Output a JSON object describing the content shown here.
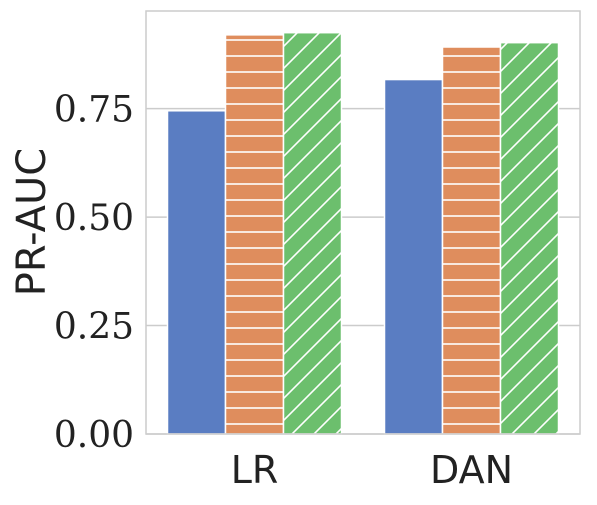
{
  "chart_data": {
    "type": "bar",
    "title": "",
    "xlabel": "",
    "ylabel": "PR-AUC",
    "categories": [
      "LR",
      "DAN"
    ],
    "series": [
      {
        "values": [
          0.745,
          0.817
        ],
        "color": "#5a7dc2",
        "hatch": "none"
      },
      {
        "values": [
          0.92,
          0.892
        ],
        "color": "#df8d5d",
        "hatch": "horizontal"
      },
      {
        "values": [
          0.925,
          0.902
        ],
        "color": "#6cbf6d",
        "hatch": "diagonal"
      }
    ],
    "yticks": [
      "0.00",
      "0.25",
      "0.50",
      "0.75"
    ],
    "ylim": [
      0,
      0.975
    ],
    "grid": true,
    "legend": "none"
  }
}
